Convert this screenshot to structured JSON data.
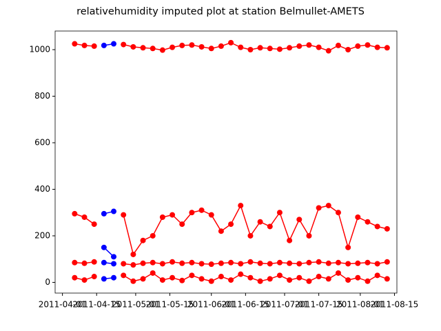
{
  "chart_data": {
    "type": "line",
    "title": "relativehumidity imputed plot at station Belmullet-AMETS",
    "x": [
      "2011-04-06",
      "2011-04-10",
      "2011-04-14",
      "2011-04-18",
      "2011-04-22",
      "2011-04-26",
      "2011-04-30",
      "2011-05-04",
      "2011-05-08",
      "2011-05-12",
      "2011-05-16",
      "2011-05-20",
      "2011-05-24",
      "2011-05-28",
      "2011-06-01",
      "2011-06-05",
      "2011-06-09",
      "2011-06-13",
      "2011-06-17",
      "2011-06-21",
      "2011-06-25",
      "2011-06-29",
      "2011-07-03",
      "2011-07-07",
      "2011-07-11",
      "2011-07-15",
      "2011-07-19",
      "2011-07-23",
      "2011-07-27",
      "2011-07-31",
      "2011-08-04",
      "2011-08-08",
      "2011-08-12"
    ],
    "series": [
      {
        "color": "#ff0000",
        "values": [
          1025,
          1018,
          1015,
          null,
          null,
          1022,
          1012,
          1008,
          1005,
          998,
          1010,
          1018,
          1020,
          1012,
          1005,
          1015,
          1030,
          1010,
          1000,
          1008,
          1005,
          1002,
          1008,
          1015,
          1020,
          1010,
          995,
          1018,
          1000,
          1015,
          1020,
          1010,
          1008
        ]
      },
      {
        "color": "#ff0000",
        "values": [
          295,
          280,
          250,
          null,
          null,
          290,
          120,
          180,
          200,
          280,
          290,
          250,
          300,
          310,
          290,
          220,
          250,
          330,
          200,
          260,
          240,
          300,
          180,
          270,
          200,
          320,
          330,
          300,
          150,
          280,
          260,
          240,
          230
        ]
      },
      {
        "color": "#ff0000",
        "values": [
          85,
          82,
          88,
          null,
          null,
          80,
          75,
          82,
          85,
          80,
          88,
          82,
          85,
          80,
          78,
          82,
          85,
          80,
          88,
          82,
          80,
          85,
          82,
          80,
          85,
          88,
          82,
          85,
          80,
          82,
          85,
          80,
          88
        ]
      },
      {
        "color": "#ff0000",
        "values": [
          20,
          10,
          25,
          null,
          null,
          30,
          5,
          15,
          40,
          10,
          20,
          8,
          30,
          15,
          5,
          25,
          10,
          35,
          20,
          5,
          15,
          30,
          10,
          20,
          5,
          25,
          15,
          40,
          10,
          20,
          5,
          30,
          15
        ]
      },
      {
        "color": "#0000ff",
        "values": [
          null,
          null,
          null,
          1018,
          1025,
          null,
          null,
          null,
          null,
          null,
          null,
          null,
          null,
          null,
          null,
          null,
          null,
          null,
          null,
          null,
          null,
          null,
          null,
          null,
          null,
          null,
          null,
          null,
          null,
          null,
          null,
          null,
          null
        ]
      },
      {
        "color": "#0000ff",
        "values": [
          null,
          null,
          null,
          295,
          305,
          null,
          null,
          null,
          null,
          null,
          null,
          null,
          null,
          null,
          null,
          null,
          null,
          null,
          null,
          null,
          null,
          null,
          null,
          null,
          null,
          null,
          null,
          null,
          null,
          null,
          null,
          null,
          null
        ]
      },
      {
        "color": "#0000ff",
        "values": [
          null,
          null,
          null,
          150,
          110,
          null,
          null,
          null,
          null,
          null,
          null,
          null,
          null,
          null,
          null,
          null,
          null,
          null,
          null,
          null,
          null,
          null,
          null,
          null,
          null,
          null,
          null,
          null,
          null,
          null,
          null,
          null,
          null
        ]
      },
      {
        "color": "#0000ff",
        "values": [
          null,
          null,
          null,
          85,
          80,
          null,
          null,
          null,
          null,
          null,
          null,
          null,
          null,
          null,
          null,
          null,
          null,
          null,
          null,
          null,
          null,
          null,
          null,
          null,
          null,
          null,
          null,
          null,
          null,
          null,
          null,
          null,
          null
        ]
      },
      {
        "color": "#0000ff",
        "values": [
          null,
          null,
          null,
          15,
          20,
          null,
          null,
          null,
          null,
          null,
          null,
          null,
          null,
          null,
          null,
          null,
          null,
          null,
          null,
          null,
          null,
          null,
          null,
          null,
          null,
          null,
          null,
          null,
          null,
          null,
          null,
          null,
          null
        ]
      }
    ],
    "xlim": [
      "2011-03-29",
      "2011-08-16"
    ],
    "xticks": [
      "2011-04-01",
      "2011-04-15",
      "2011-05-01",
      "2011-05-15",
      "2011-06-01",
      "2011-06-15",
      "2011-07-01",
      "2011-07-15",
      "2011-08-01",
      "2011-08-15"
    ],
    "ylim": [
      -46,
      1080
    ],
    "yticks": [
      0,
      200,
      400,
      600,
      800,
      1000
    ]
  }
}
